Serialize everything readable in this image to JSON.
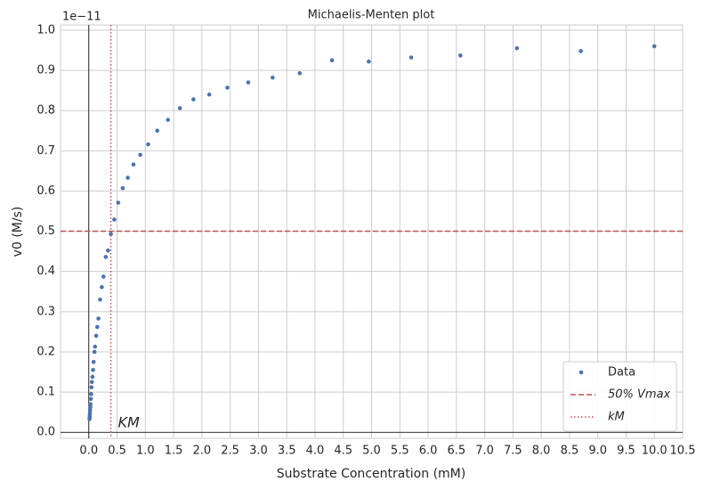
{
  "chart_data": {
    "type": "scatter",
    "title": "Michaelis-Menten plot",
    "x_label": "Substrate Concentration (mM)",
    "y_label": "v0 (M/s)",
    "y_offset_label": "1e−11",
    "x": [
      10.0,
      8.7,
      7.57,
      6.57,
      5.7,
      4.95,
      4.3,
      3.73,
      3.25,
      2.82,
      2.45,
      2.13,
      1.85,
      1.61,
      1.4,
      1.21,
      1.05,
      0.91,
      0.79,
      0.69,
      0.6,
      0.52,
      0.45,
      0.39,
      0.34,
      0.3,
      0.26,
      0.23,
      0.2,
      0.17,
      0.15,
      0.13,
      0.11,
      0.1,
      0.085,
      0.075,
      0.065,
      0.055,
      0.048,
      0.042,
      0.036,
      0.031,
      0.027,
      0.023,
      0.02,
      0.017,
      0.015,
      0.013
    ],
    "series": [
      {
        "name": "Data",
        "color": "#4c72b0",
        "values": [
          0.96,
          0.948,
          0.955,
          0.937,
          0.932,
          0.922,
          0.925,
          0.893,
          0.882,
          0.87,
          0.857,
          0.84,
          0.828,
          0.806,
          0.777,
          0.75,
          0.716,
          0.69,
          0.666,
          0.633,
          0.607,
          0.571,
          0.529,
          0.493,
          0.452,
          0.436,
          0.387,
          0.361,
          0.33,
          0.283,
          0.262,
          0.24,
          0.213,
          0.2,
          0.175,
          0.155,
          0.138,
          0.125,
          0.112,
          0.095,
          0.083,
          0.07,
          0.062,
          0.055,
          0.048,
          0.042,
          0.037,
          0.033
        ]
      }
    ],
    "hlines": [
      {
        "name": "50% Vmax",
        "value": 0.5,
        "color": "#c44e52"
      }
    ],
    "vlines": [
      {
        "name": "kM",
        "value": 0.39,
        "color": "#c44e52"
      }
    ],
    "annotation": "KM",
    "xlim": [
      -0.5,
      10.5
    ],
    "ylim": [
      -0.015,
      1.013
    ],
    "xticks": [
      {
        "value": 0,
        "label": "0.0"
      },
      0.5,
      {
        "value": 1,
        "label": "1.0"
      },
      1.5,
      {
        "value": 2,
        "label": "2.0"
      },
      2.5,
      {
        "value": 3,
        "label": "3.0"
      },
      3.5,
      {
        "value": 4,
        "label": "4.0"
      },
      4.5,
      {
        "value": 5,
        "label": "5.0"
      },
      5.5,
      {
        "value": 6,
        "label": "6.0"
      },
      6.5,
      {
        "value": 7,
        "label": "7.0"
      },
      7.5,
      {
        "value": 8,
        "label": "8.0"
      },
      8.5,
      {
        "value": 9,
        "label": "9.0"
      },
      9.5,
      {
        "value": 10,
        "label": "10.0"
      },
      10.5
    ],
    "yticks": [
      {
        "value": 0,
        "label": "0.0"
      },
      0.1,
      0.2,
      0.3,
      0.4,
      0.5,
      0.6,
      0.7,
      0.8,
      0.9,
      {
        "value": 1,
        "label": "1.0"
      }
    ],
    "grid": true,
    "legend": "lower right"
  }
}
